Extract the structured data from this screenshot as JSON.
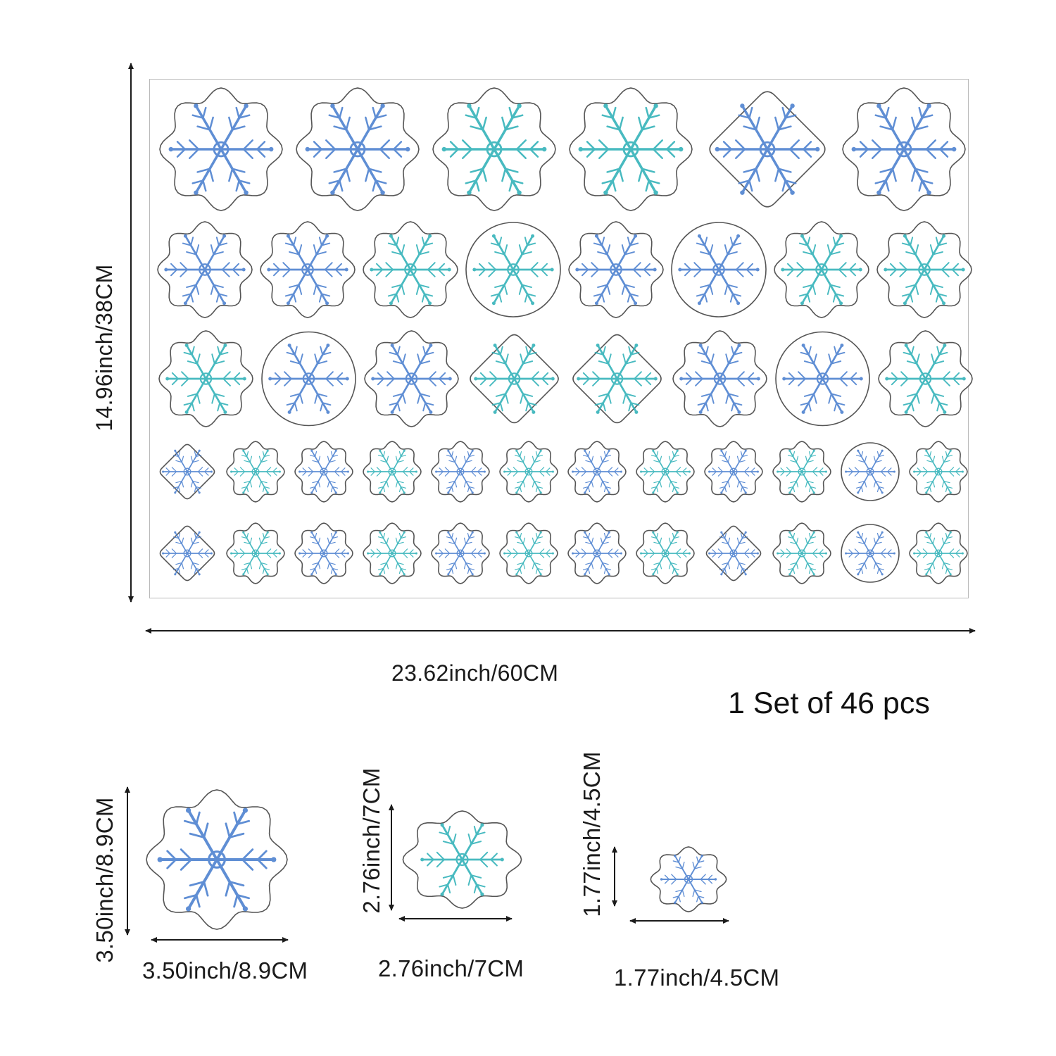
{
  "sheet": {
    "height_label": "14.96inch/38CM",
    "width_label": "23.62inch/60CM",
    "set_label": "1 Set of 46 pcs"
  },
  "sizes": [
    {
      "height_label": "3.50inch/8.9CM",
      "width_label": "3.50inch/8.9CM"
    },
    {
      "height_label": "2.76inch/7CM",
      "width_label": "2.76inch/7CM"
    },
    {
      "height_label": "1.77inch/4.5CM",
      "width_label": "1.77inch/4.5CM"
    }
  ],
  "colors": {
    "blue": "#4a7fcf",
    "teal": "#2fb1b8",
    "outline": "#555555"
  },
  "sticker_rows": [
    {
      "count": 6,
      "shapes": [
        "wavy",
        "wavy",
        "wavy",
        "wavy",
        "diamond",
        "wavy"
      ],
      "tones": [
        "blue",
        "blue",
        "teal",
        "teal",
        "blue",
        "blue"
      ]
    },
    {
      "count": 8,
      "shapes": [
        "wavy",
        "wavy",
        "wavy",
        "circle",
        "wavy",
        "circle",
        "wavy",
        "wavy"
      ],
      "tones": [
        "blue",
        "blue",
        "teal",
        "teal",
        "blue",
        "blue",
        "teal",
        "teal"
      ]
    },
    {
      "count": 8,
      "shapes": [
        "wavy",
        "circle",
        "wavy",
        "diamond",
        "diamond",
        "wavy",
        "circle",
        "wavy"
      ],
      "tones": [
        "teal",
        "blue",
        "blue",
        "teal",
        "teal",
        "blue",
        "blue",
        "teal"
      ]
    },
    {
      "count": 12,
      "shapes": [
        "diamond",
        "wavy",
        "wavy",
        "wavy",
        "wavy",
        "wavy",
        "wavy",
        "wavy",
        "wavy",
        "wavy",
        "circle",
        "wavy"
      ],
      "tones": [
        "blue",
        "teal",
        "blue",
        "teal",
        "blue",
        "teal",
        "blue",
        "teal",
        "blue",
        "teal",
        "blue",
        "teal"
      ]
    },
    {
      "count": 12,
      "shapes": [
        "diamond",
        "wavy",
        "wavy",
        "wavy",
        "wavy",
        "wavy",
        "wavy",
        "wavy",
        "diamond",
        "wavy",
        "circle",
        "wavy"
      ],
      "tones": [
        "blue",
        "teal",
        "blue",
        "teal",
        "blue",
        "teal",
        "blue",
        "teal",
        "blue",
        "teal",
        "blue",
        "teal"
      ]
    }
  ]
}
